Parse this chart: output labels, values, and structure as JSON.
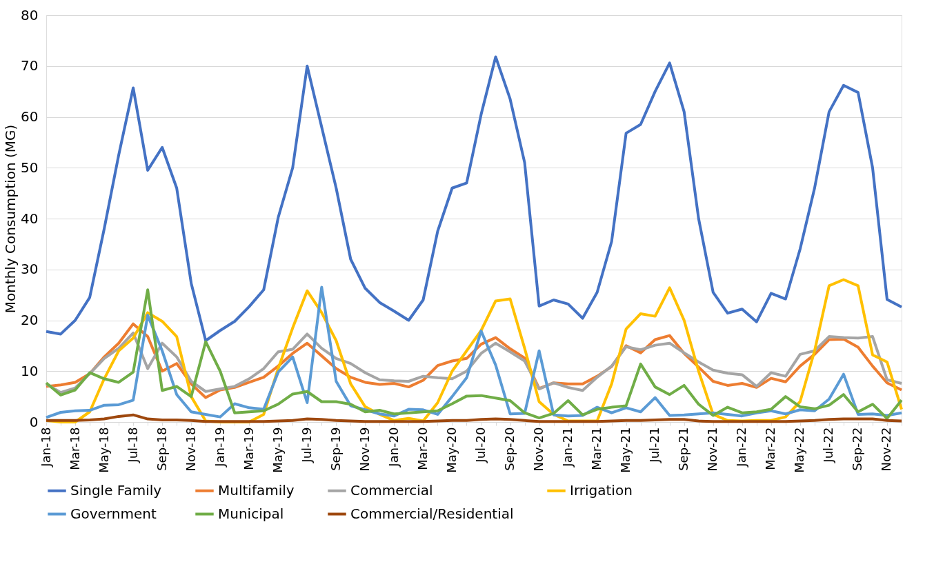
{
  "chart_data": {
    "type": "line",
    "ylabel": "Monthly Consumption (MG)",
    "categories": [
      "Jan-18",
      null,
      "Mar-18",
      null,
      "May-18",
      null,
      "Jul-18",
      null,
      "Sep-18",
      null,
      "Nov-18",
      null,
      "Jan-19",
      null,
      "Mar-19",
      null,
      "May-19",
      null,
      "Jul-19",
      null,
      "Sep-19",
      null,
      "Nov-19",
      null,
      "Jan-20",
      null,
      "Mar-20",
      null,
      "May-20",
      null,
      "Jul-20",
      null,
      "Sep-20",
      null,
      "Nov-20",
      null,
      "Jan-21",
      null,
      "Mar-21",
      null,
      "May-21",
      null,
      "Jul-21",
      null,
      "Sep-21",
      null,
      "Nov-21",
      null,
      "Jan-22",
      null,
      "Mar-22",
      null,
      "May-22",
      null,
      "Jul-22",
      null,
      "Sep-22",
      null,
      "Nov-22",
      null
    ],
    "series": [
      {
        "name": "Single Family",
        "color": "#4472c4",
        "values": [
          17.8,
          17.3,
          20,
          24.5,
          38,
          52.5,
          65.7,
          49.5,
          54,
          46,
          27.3,
          16,
          18,
          19.8,
          22.7,
          26,
          40.2,
          50,
          70,
          58,
          46,
          32,
          26.3,
          23.5,
          21.8,
          20,
          24,
          37.5,
          46,
          47,
          60.5,
          71.8,
          63.5,
          51,
          22.8,
          24,
          23.2,
          20.4,
          25.5,
          35.5,
          56.8,
          58.5,
          65,
          70.6,
          61,
          40,
          25.5,
          21.4,
          22.2,
          19.7,
          25.3,
          24.2,
          34,
          46,
          61,
          66.2,
          64.8,
          50,
          24.1,
          22.6
        ]
      },
      {
        "name": "Multifamily",
        "color": "#ed7d31",
        "values": [
          7,
          7.3,
          7.8,
          9.5,
          12.8,
          15.5,
          19.3,
          16.8,
          10,
          11.5,
          7.5,
          4.8,
          6.3,
          6.8,
          7.8,
          8.8,
          11,
          13.5,
          15.5,
          13,
          10.5,
          8.8,
          7.8,
          7.4,
          7.6,
          6.9,
          8.2,
          11.1,
          12,
          12.5,
          15.3,
          16.6,
          14.4,
          12.6,
          6.6,
          7.7,
          7.5,
          7.5,
          9,
          10.9,
          15,
          13.6,
          16.2,
          17,
          13.5,
          10.8,
          8,
          7.2,
          7.6,
          6.8,
          8.6,
          7.9,
          11,
          13.3,
          16.2,
          16.3,
          14.7,
          11,
          7.7,
          6.3
        ]
      },
      {
        "name": "Commercial",
        "color": "#a5a5a5",
        "values": [
          7.5,
          5.8,
          6.7,
          9.5,
          12.5,
          14.5,
          17.5,
          10.5,
          15.5,
          12.8,
          8,
          6,
          6.5,
          7,
          8.5,
          10.5,
          13.8,
          14.3,
          17.3,
          14.5,
          12.5,
          11.5,
          9.7,
          8.3,
          8.1,
          8,
          9,
          8.7,
          8.5,
          10,
          13.5,
          15.5,
          13.8,
          12,
          6.5,
          7.7,
          6.8,
          6.2,
          8.8,
          11,
          14.8,
          14.2,
          15.1,
          15.5,
          13.6,
          11.8,
          10.2,
          9.6,
          9.3,
          7,
          9.7,
          9,
          13.3,
          14,
          16.8,
          16.6,
          16.5,
          16.8,
          8.3,
          7.6
        ]
      },
      {
        "name": "Irrigation",
        "color": "#ffc000",
        "values": [
          0.3,
          0,
          0,
          2,
          8.5,
          14,
          16.5,
          21.5,
          19.8,
          16.8,
          5,
          0.2,
          0,
          0,
          0,
          1.5,
          10.5,
          18.5,
          25.8,
          21.5,
          16,
          7.5,
          3,
          1.5,
          0.3,
          0.7,
          0.2,
          3.8,
          10,
          14,
          18,
          23.8,
          24.2,
          14.5,
          4,
          1.5,
          0.2,
          0.2,
          0.2,
          7.5,
          18.3,
          21.3,
          20.8,
          26.4,
          20,
          10,
          1.5,
          0.3,
          0.2,
          0.3,
          0.3,
          1,
          4,
          14,
          26.8,
          28,
          26.8,
          13.2,
          11.8,
          2.5
        ]
      },
      {
        "name": "Government",
        "color": "#5b9bd5",
        "values": [
          0.9,
          1.9,
          2.2,
          2.3,
          3.3,
          3.4,
          4.3,
          21,
          14,
          5.4,
          2,
          1.5,
          1,
          3.6,
          2.8,
          2.5,
          9.8,
          12.8,
          3.8,
          26.5,
          8,
          3.2,
          2.4,
          1.6,
          1.2,
          2.5,
          2.4,
          1.5,
          5,
          8.7,
          17.9,
          11.2,
          1.6,
          1.7,
          14,
          1.4,
          1.2,
          1.3,
          2.9,
          1.8,
          2.8,
          2,
          4.8,
          1.3,
          1.4,
          1.6,
          1.8,
          1.5,
          1.2,
          1.8,
          2.2,
          1.6,
          2.4,
          2.2,
          4.5,
          9.4,
          1.5,
          1.6,
          1.3,
          1.8
        ]
      },
      {
        "name": "Municipal",
        "color": "#70ad47",
        "values": [
          7.7,
          5.3,
          6.3,
          9.7,
          8.5,
          7.8,
          9.8,
          26,
          6.2,
          7,
          5,
          15.8,
          10,
          1.8,
          2,
          2.2,
          3.5,
          5.5,
          6,
          4,
          4,
          3.5,
          2,
          2.3,
          1.6,
          1.8,
          2,
          2.2,
          3.6,
          5.1,
          5.2,
          4.7,
          4.2,
          1.8,
          0.8,
          1.7,
          4.2,
          1.4,
          2.5,
          2.9,
          3.2,
          11.4,
          6.9,
          5.4,
          7.2,
          3.5,
          1.3,
          2.9,
          1.8,
          2,
          2.5,
          5,
          3,
          2.6,
          3.3,
          5.4,
          2,
          3.5,
          0.7,
          4.3
        ]
      },
      {
        "name": "Commercial/Residential",
        "color": "#9e480e",
        "values": [
          0.3,
          0.3,
          0.3,
          0.4,
          0.6,
          1.1,
          1.4,
          0.6,
          0.4,
          0.4,
          0.3,
          0.1,
          0.1,
          0.1,
          0.1,
          0.1,
          0.2,
          0.3,
          0.6,
          0.5,
          0.3,
          0.2,
          0.1,
          0.1,
          0.1,
          0.1,
          0.1,
          0.2,
          0.3,
          0.3,
          0.5,
          0.6,
          0.5,
          0.3,
          0.1,
          0.1,
          0.1,
          0.1,
          0.1,
          0.2,
          0.3,
          0.3,
          0.4,
          0.5,
          0.5,
          0.2,
          0.1,
          0.1,
          0.1,
          0.1,
          0.1,
          0.1,
          0.2,
          0.3,
          0.5,
          0.6,
          0.6,
          0.6,
          0.3,
          0.2
        ]
      }
    ],
    "ylim": [
      0,
      80
    ],
    "yticks": [
      0,
      10,
      20,
      30,
      40,
      50,
      60,
      70,
      80
    ],
    "grid": "y",
    "legend": "bottom",
    "marker": "none",
    "line_style": "solid"
  }
}
